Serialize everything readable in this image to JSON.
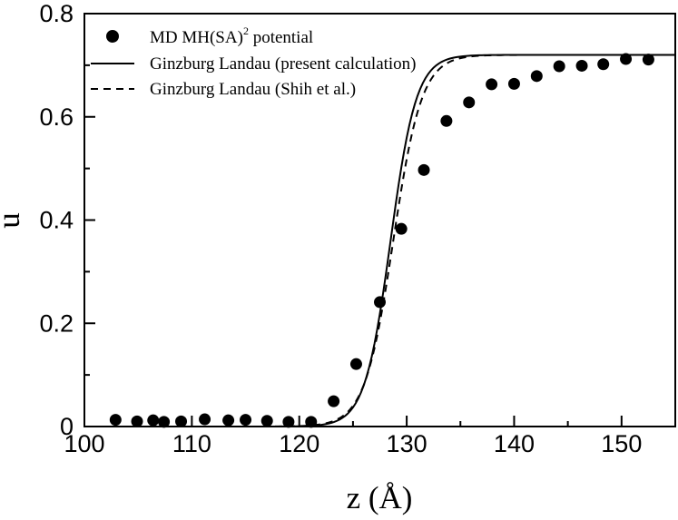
{
  "chart_data": {
    "type": "line",
    "title": "",
    "xlabel": "z (Å)",
    "ylabel": "u",
    "xlim": [
      100,
      155
    ],
    "ylim": [
      0,
      0.8
    ],
    "x_ticks": [
      100,
      110,
      120,
      130,
      140,
      150
    ],
    "x_tick_labels": [
      "100",
      "110",
      "120",
      "130",
      "140",
      "150"
    ],
    "y_ticks": [
      0,
      0.2,
      0.4,
      0.6,
      0.8
    ],
    "y_tick_labels": [
      "0",
      "0.2",
      "0.4",
      "0.6",
      "0.8"
    ],
    "grid": false,
    "legend_position": "top-left",
    "series": [
      {
        "name": "MD MH(SA)2 potential",
        "legend_label": "MD MH(SA)",
        "legend_superscript": "2",
        "legend_suffix": " potential",
        "style": "markers",
        "x": [
          102.9,
          104.9,
          106.4,
          107.4,
          109.0,
          111.2,
          113.4,
          115.0,
          117.0,
          119.0,
          121.1,
          123.2,
          125.3,
          127.5,
          129.5,
          131.6,
          133.7,
          135.8,
          137.9,
          140.0,
          142.1,
          144.2,
          146.3,
          148.3,
          150.4,
          152.5
        ],
        "y": [
          0.013,
          0.01,
          0.012,
          0.009,
          0.01,
          0.014,
          0.012,
          0.013,
          0.011,
          0.009,
          0.009,
          0.049,
          0.121,
          0.241,
          0.383,
          0.497,
          0.592,
          0.628,
          0.663,
          0.664,
          0.679,
          0.698,
          0.699,
          0.702,
          0.712,
          0.711
        ]
      },
      {
        "name": "Ginzburg Landau (present calculation)",
        "legend_label": "Ginzburg Landau (present calculation)",
        "style": "solid",
        "model": "tanh",
        "x_range": [
          100,
          155
        ],
        "samples": 221,
        "amplitude": 0.72,
        "center": 128.5,
        "width": 2.4
      },
      {
        "name": "Ginzburg Landau (Shih et al.)",
        "legend_label": "Ginzburg Landau (Shih et al.)",
        "style": "dashed",
        "model": "tanh",
        "x_range": [
          100,
          155
        ],
        "samples": 221,
        "amplitude": 0.72,
        "center": 128.75,
        "width": 2.65
      }
    ]
  }
}
